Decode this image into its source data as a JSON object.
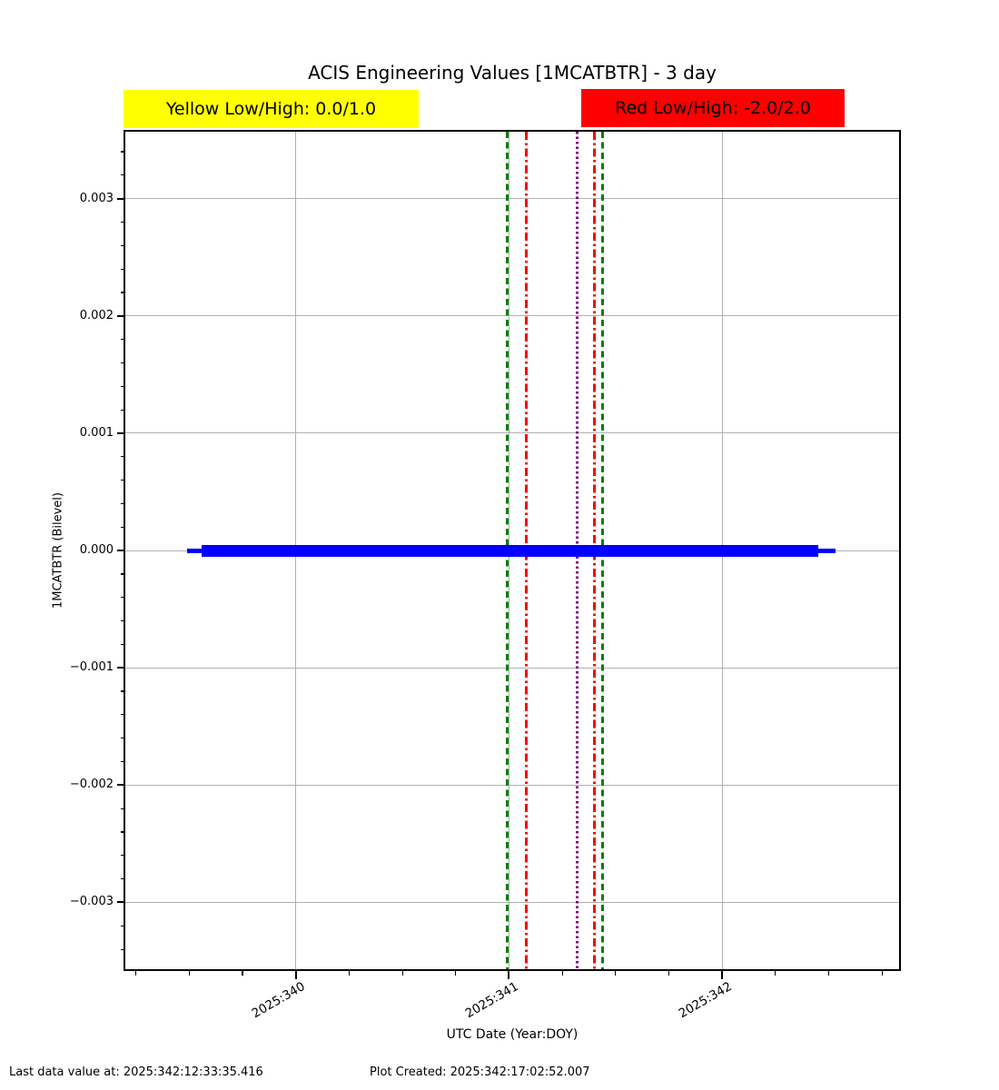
{
  "title": "ACIS Engineering Values [1MCATBTR] - 3 day",
  "limits": {
    "yellow": {
      "label": "Yellow Low/High: 0.0/1.0",
      "low": 0.0,
      "high": 1.0,
      "bg": "#ffff00",
      "text_color": "#000000"
    },
    "red": {
      "label": "Red Low/High: -2.0/2.0",
      "low": -2.0,
      "high": 2.0,
      "bg": "#ff0000",
      "text_color": "#000000"
    }
  },
  "footer": {
    "last_data": "Last data value at: 2025:342:12:33:35.416",
    "created": "Plot Created: 2025:342:17:02:52.007"
  },
  "chart_data": {
    "type": "line",
    "title": "ACIS Engineering Values [1MCATBTR] - 3 day",
    "xlabel": "UTC Date (Year:DOY)",
    "ylabel": "1MCATBTR (Bilevel)",
    "xlim": [
      339.2,
      342.83
    ],
    "ylim": [
      -0.00357,
      0.00357
    ],
    "x_ticks": [
      {
        "v": 340,
        "label": "2025:340"
      },
      {
        "v": 341,
        "label": "2025:341"
      },
      {
        "v": 342,
        "label": "2025:342"
      }
    ],
    "y_ticks": [
      {
        "v": 0.003,
        "label": "0.003"
      },
      {
        "v": 0.002,
        "label": "0.002"
      },
      {
        "v": 0.001,
        "label": "0.001"
      },
      {
        "v": 0.0,
        "label": "0.000"
      },
      {
        "v": -0.001,
        "label": "−0.001"
      },
      {
        "v": -0.002,
        "label": "−0.002"
      },
      {
        "v": -0.003,
        "label": "−0.003"
      }
    ],
    "x_minor_step": 0.25,
    "y_minor_step": 0.0002,
    "grid": true,
    "grid_color": "#b0b0b0",
    "series": [
      {
        "name": "1MCATBTR",
        "color": "#0000ff",
        "y": 0.0,
        "band_halfwidth": 5e-05,
        "x_start": 339.49,
        "x_end": 342.53,
        "core_x_start": 339.56,
        "core_x_end": 342.45
      }
    ],
    "limit_lines": [
      {
        "x": 340.99,
        "color": "#008000",
        "style": "dashed",
        "name": "yellow-low-limit-line-green"
      },
      {
        "x": 341.08,
        "color": "#ff0000",
        "style": "dashdot",
        "name": "red-limit-line"
      },
      {
        "x": 341.32,
        "color": "#800080",
        "style": "dotted",
        "name": "purple-marker-line"
      },
      {
        "x": 341.4,
        "color": "#ff0000",
        "style": "dashdot",
        "name": "red-limit-line"
      },
      {
        "x": 341.44,
        "color": "#008000",
        "style": "dashed",
        "name": "yellow-high-limit-line-green"
      }
    ]
  }
}
